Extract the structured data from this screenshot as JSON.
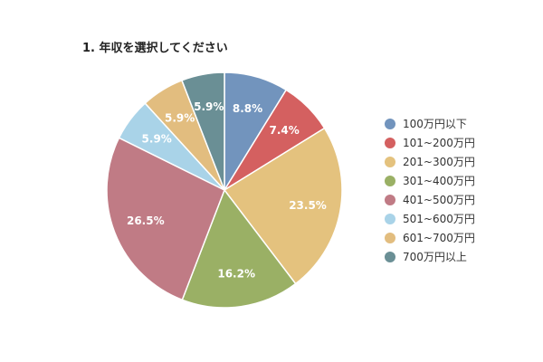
{
  "chart_data": {
    "type": "pie",
    "title": "1. 年収を選択してください",
    "categories": [
      "100万円以下",
      "101~200万円",
      "201~300万円",
      "301~400万円",
      "401~500万円",
      "501~600万円",
      "601~700万円",
      "700万円以上"
    ],
    "values": [
      8.8,
      7.4,
      23.5,
      16.2,
      26.5,
      5.9,
      5.9,
      5.9
    ],
    "value_labels": [
      "8.8%",
      "7.4%",
      "23.5%",
      "16.2%",
      "26.5%",
      "5.9%",
      "5.9%",
      "5.9%"
    ],
    "colors": [
      "#7294bd",
      "#d46060",
      "#e4c27e",
      "#9ab065",
      "#c07b85",
      "#a9d3e8",
      "#e2bd7f",
      "#6a8f95"
    ],
    "legend_position": "right"
  }
}
